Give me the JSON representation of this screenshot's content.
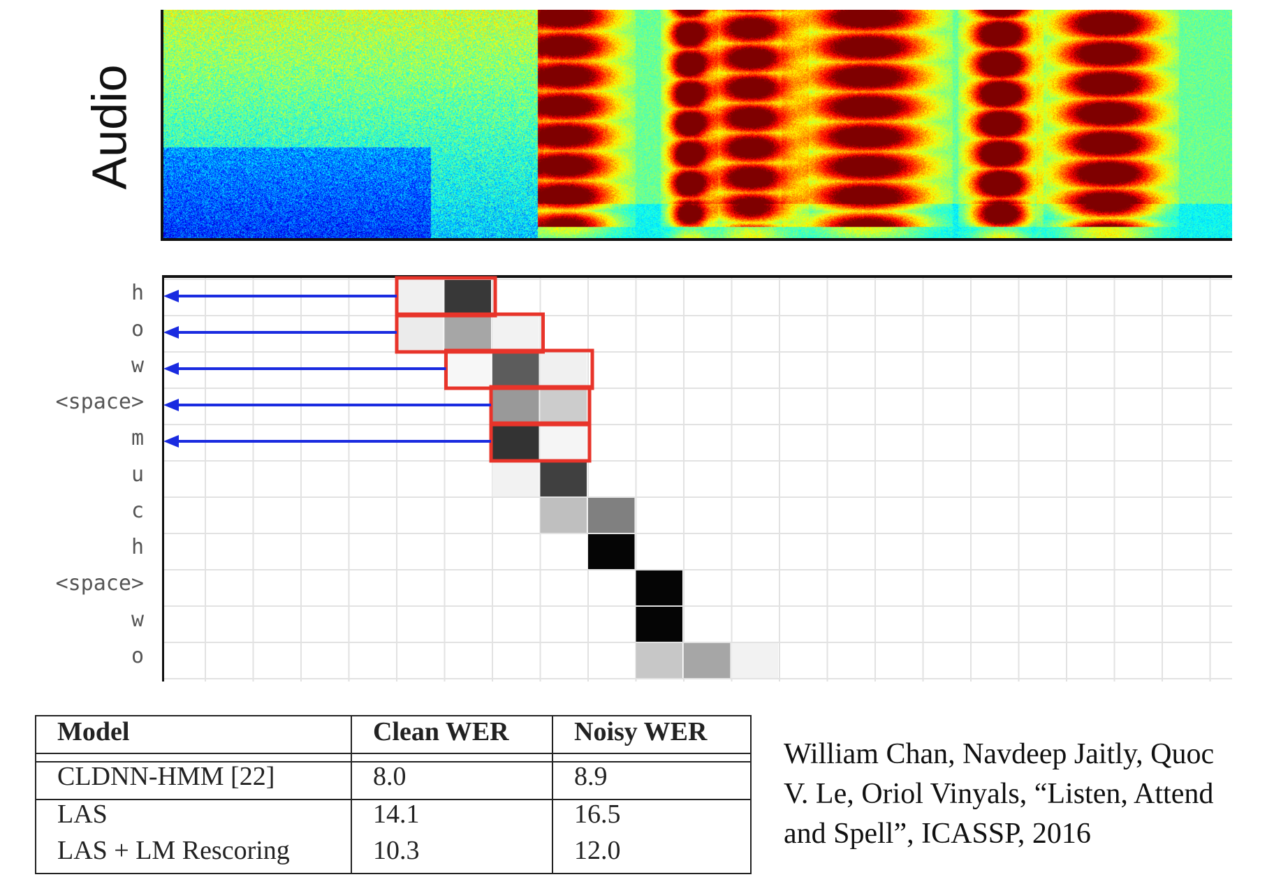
{
  "audio_label": "Audio",
  "attention": {
    "row_labels": [
      "h",
      "o",
      "w",
      "<space>",
      "m",
      "u",
      "c",
      "h",
      "<space>",
      "w",
      "o"
    ],
    "cell_weights": [
      [
        [
          0,
          0.06
        ],
        [
          1,
          0.78
        ]
      ],
      [
        [
          0,
          0.08
        ],
        [
          1,
          0.35
        ],
        [
          2,
          0.05
        ]
      ],
      [
        [
          1,
          0.03
        ],
        [
          2,
          0.64
        ],
        [
          3,
          0.06
        ]
      ],
      [
        [
          2,
          0.4
        ],
        [
          3,
          0.2
        ]
      ],
      [
        [
          2,
          0.8
        ],
        [
          3,
          0.04
        ]
      ],
      [
        [
          2,
          0.05
        ],
        [
          3,
          0.75
        ]
      ],
      [
        [
          3,
          0.25
        ],
        [
          4,
          0.5
        ]
      ],
      [
        [
          4,
          0.98
        ]
      ],
      [
        [
          5,
          0.98
        ]
      ],
      [
        [
          5,
          0.98
        ]
      ],
      [
        [
          5,
          0.22
        ],
        [
          6,
          0.35
        ],
        [
          7,
          0.05
        ]
      ]
    ],
    "highlighted_rows": 5
  },
  "table": {
    "headers": [
      "Model",
      "Clean WER",
      "Noisy WER"
    ],
    "rows": [
      [
        "CLDNN-HMM [22]",
        "8.0",
        "8.9"
      ],
      [
        "LAS",
        "14.1",
        "16.5"
      ],
      [
        "LAS + LM Rescoring",
        "10.3",
        "12.0"
      ]
    ]
  },
  "citation": {
    "lines": [
      "William Chan, Navdeep Jaitly, Quoc",
      "V. Le, Oriol Vinyals, “Listen, Attend",
      "and Spell”, ICASSP, 2016"
    ]
  },
  "colors": {
    "highlight_box": "#e8342a",
    "arrow": "#1a2be0",
    "grid": "#e2e2e2"
  }
}
